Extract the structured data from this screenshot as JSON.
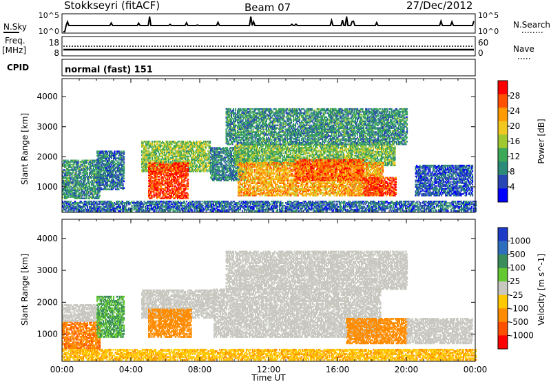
{
  "header": {
    "station": "Stokkseyri (fitACF)",
    "beam": "Beam 07",
    "date": "27/Dec/2012"
  },
  "nsky_panel": {
    "left_label": "N.Sky",
    "left_ticks": [
      "10^5",
      "10^0"
    ],
    "right_ticks": [
      "10^5",
      "10^0"
    ],
    "right_label": "N.Search"
  },
  "freq_panel": {
    "left_label_line1": "Freq.",
    "left_label_line2": "[MHz]",
    "left_ticks": [
      "18",
      "8"
    ],
    "right_ticks": [
      "60",
      "0"
    ],
    "right_label": "Nave"
  },
  "cpid_panel": {
    "label": "CPID",
    "value": "normal (fast) 151"
  },
  "time_axis": {
    "label": "Time UT",
    "ticks": [
      "00:00",
      "04:00",
      "08:00",
      "12:00",
      "16:00",
      "20:00",
      "00:00"
    ],
    "range_hours": [
      0,
      24
    ]
  },
  "colors": {
    "power_scale": [
      "#0000ff",
      "#2a46b4",
      "#2e8a78",
      "#3ca858",
      "#a0c830",
      "#f0c820",
      "#ff9a00",
      "#ff5000",
      "#ff0000"
    ],
    "velocity_scale": [
      "#1e3cc8",
      "#2e6ebe",
      "#3a8c5a",
      "#64c832",
      "#c8c8c0",
      "#ffc800",
      "#ff8c00",
      "#ff5000",
      "#ff0000"
    ]
  },
  "chart_data": [
    {
      "type": "heatmap",
      "name": "power",
      "ylabel": "Slant Range [km]",
      "yticks": [
        "1000",
        "2000",
        "3000",
        "4000"
      ],
      "ylim": [
        150,
        4600
      ],
      "colorbar_label": "Power [dB]",
      "colorbar_ticks": [
        "4",
        "8",
        "12",
        "16",
        "20",
        "24",
        "28"
      ],
      "colorbar_range": [
        0,
        32
      ],
      "regions": [
        {
          "t": [
            0.0,
            2.2
          ],
          "r": [
            600,
            1900
          ],
          "v": 10
        },
        {
          "t": [
            2.0,
            3.6
          ],
          "r": [
            900,
            2200
          ],
          "v": 8
        },
        {
          "t": [
            4.6,
            8.6
          ],
          "r": [
            1500,
            2500
          ],
          "v": 15
        },
        {
          "t": [
            5.0,
            7.3
          ],
          "r": [
            600,
            1800
          ],
          "v": 28
        },
        {
          "t": [
            8.6,
            10.6
          ],
          "r": [
            1200,
            2300
          ],
          "v": 9
        },
        {
          "t": [
            10.0,
            19.3
          ],
          "r": [
            1700,
            2400
          ],
          "v": 14
        },
        {
          "t": [
            10.2,
            18.6
          ],
          "r": [
            700,
            1800
          ],
          "v": 22
        },
        {
          "t": [
            13.5,
            17.5
          ],
          "r": [
            1200,
            1900
          ],
          "v": 26
        },
        {
          "t": [
            17.5,
            19.4
          ],
          "r": [
            700,
            1300
          ],
          "v": 28
        },
        {
          "t": [
            20.5,
            23.8
          ],
          "r": [
            700,
            1700
          ],
          "v": 6
        },
        {
          "t": [
            9.5,
            20.0
          ],
          "r": [
            2400,
            3600
          ],
          "v": 10
        },
        {
          "t": [
            0.0,
            24.0
          ],
          "r": [
            180,
            500
          ],
          "v": 7
        }
      ]
    },
    {
      "type": "heatmap",
      "name": "velocity",
      "ylabel": "Slant Range [km]",
      "yticks": [
        "1000",
        "2000",
        "3000",
        "4000"
      ],
      "ylim": [
        150,
        4600
      ],
      "colorbar_label": "Velocity [m s^-1]",
      "colorbar_ticks": [
        "1000",
        "500",
        "100",
        "25",
        "-25",
        "-100",
        "-500",
        "-1000"
      ],
      "regions": [
        {
          "t": [
            0.0,
            2.2
          ],
          "r": [
            500,
            1400
          ],
          "v": -400
        },
        {
          "t": [
            0.0,
            2.0
          ],
          "r": [
            1400,
            1900
          ],
          "v": 0
        },
        {
          "t": [
            2.0,
            3.6
          ],
          "r": [
            900,
            2200
          ],
          "v": 100
        },
        {
          "t": [
            4.6,
            8.8
          ],
          "r": [
            1500,
            2400
          ],
          "v": 0
        },
        {
          "t": [
            5.0,
            7.5
          ],
          "r": [
            900,
            1800
          ],
          "v": -200
        },
        {
          "t": [
            8.8,
            18.5
          ],
          "r": [
            900,
            2400
          ],
          "v": 0
        },
        {
          "t": [
            16.5,
            20.0
          ],
          "r": [
            700,
            1500
          ],
          "v": -250
        },
        {
          "t": [
            20.0,
            23.8
          ],
          "r": [
            700,
            1500
          ],
          "v": 0
        },
        {
          "t": [
            9.5,
            20.0
          ],
          "r": [
            2400,
            3600
          ],
          "v": 0
        },
        {
          "t": [
            0.0,
            24.0
          ],
          "r": [
            180,
            500
          ],
          "v": -80
        }
      ]
    }
  ]
}
